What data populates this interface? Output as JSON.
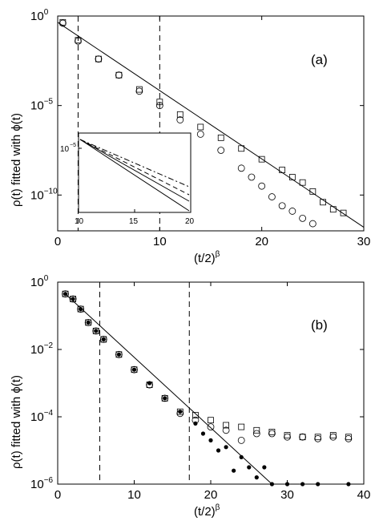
{
  "chart_data": [
    {
      "panel": "(a)",
      "type": "scatter",
      "panel_label": "(a)",
      "xlabel": "(t/2)",
      "xlabel_exp": "β",
      "ylabel": "ρ(t) fitted with ϕ(t)",
      "xlim": [
        0,
        30
      ],
      "ylim_log10": [
        -12,
        0
      ],
      "y_scale": "log",
      "x_ticks": [
        0,
        10,
        20,
        30
      ],
      "y_ticks": [
        {
          "base": "10",
          "exp": "0",
          "log": 0
        },
        {
          "base": "10",
          "exp": "−5",
          "log": -5
        },
        {
          "base": "10",
          "exp": "−10",
          "log": -10
        }
      ],
      "vlines": [
        2,
        10
      ],
      "fit_line": {
        "x": [
          0,
          30
        ],
        "log10_y": [
          -0.35,
          -11.8
        ]
      },
      "series": [
        {
          "marker": "square",
          "x": [
            0.5,
            2,
            4,
            6,
            8,
            10,
            12,
            14,
            16,
            18,
            20,
            22,
            23,
            24,
            25,
            26,
            27,
            28
          ],
          "log10_y": [
            -0.35,
            -1.35,
            -2.4,
            -3.3,
            -4.1,
            -4.8,
            -5.5,
            -6.2,
            -6.8,
            -7.4,
            -8.0,
            -8.6,
            -9.0,
            -9.3,
            -9.8,
            -10.4,
            -10.8,
            -11.0
          ]
        },
        {
          "marker": "circle",
          "x": [
            0.5,
            2,
            4,
            6,
            8,
            10,
            12,
            14,
            16,
            18,
            19,
            20,
            21,
            22,
            23,
            24,
            25
          ],
          "log10_y": [
            -0.4,
            -1.4,
            -2.4,
            -3.3,
            -4.2,
            -5.0,
            -5.8,
            -6.6,
            -7.5,
            -8.5,
            -9.0,
            -9.5,
            -10.1,
            -10.6,
            -10.9,
            -11.3,
            -11.6
          ]
        }
      ],
      "inset": {
        "xlim": [
          10,
          20
        ],
        "x_ticks": [
          10,
          15,
          20
        ],
        "y_tick": {
          "base": "10",
          "exp": "−5"
        },
        "lines": [
          "solid",
          "solid",
          "dashed",
          "dashdot"
        ]
      }
    },
    {
      "panel": "(b)",
      "type": "scatter",
      "panel_label": "(b)",
      "xlabel": "(t/2)",
      "xlabel_exp": "β",
      "ylabel": "ρ(t) fitted with ϕ(t)",
      "xlim": [
        0,
        40
      ],
      "ylim_log10": [
        -6,
        0
      ],
      "y_scale": "log",
      "x_ticks": [
        0,
        10,
        20,
        30,
        40
      ],
      "y_ticks": [
        {
          "base": "10",
          "exp": "0",
          "log": 0
        },
        {
          "base": "10",
          "exp": "−2",
          "log": -2
        },
        {
          "base": "10",
          "exp": "−4",
          "log": -4
        },
        {
          "base": "10",
          "exp": "−6",
          "log": -6
        }
      ],
      "vlines": [
        5.5,
        17.2
      ],
      "fit_line": {
        "x": [
          1,
          28
        ],
        "log10_y": [
          -0.35,
          -6.0
        ]
      },
      "series": [
        {
          "marker": "filled-circle",
          "x": [
            1,
            2,
            3,
            4,
            5,
            6,
            8,
            10,
            12,
            14,
            16,
            18,
            19,
            20,
            21,
            22,
            23,
            24,
            25,
            26,
            27,
            28,
            30,
            32,
            34,
            38
          ],
          "log10_y": [
            -0.35,
            -0.5,
            -0.8,
            -1.2,
            -1.45,
            -1.7,
            -2.15,
            -2.6,
            -3.0,
            -3.45,
            -3.85,
            -4.2,
            -4.5,
            -4.7,
            -5.0,
            -4.9,
            -5.6,
            -5.2,
            -5.5,
            -5.8,
            -5.5,
            -6.0,
            -6.0,
            -6.0,
            -6.0,
            -6.0
          ]
        },
        {
          "marker": "circle",
          "x": [
            1,
            2,
            3,
            4,
            5,
            6,
            8,
            10,
            12,
            14,
            16,
            18,
            20,
            22,
            24,
            26,
            28,
            30,
            32,
            34,
            36,
            38
          ],
          "log10_y": [
            -0.35,
            -0.5,
            -0.8,
            -1.2,
            -1.45,
            -1.7,
            -2.15,
            -2.6,
            -3.05,
            -3.45,
            -3.9,
            -4.1,
            -4.3,
            -4.4,
            -4.7,
            -4.5,
            -4.5,
            -4.6,
            -4.6,
            -4.65,
            -4.6,
            -4.65
          ]
        },
        {
          "marker": "square",
          "x": [
            1,
            2,
            3,
            4,
            5,
            6,
            8,
            10,
            12,
            14,
            16,
            18,
            20,
            22,
            24,
            26,
            28,
            30,
            32,
            34,
            36,
            38
          ],
          "log10_y": [
            -0.35,
            -0.5,
            -0.8,
            -1.2,
            -1.45,
            -1.7,
            -2.15,
            -2.6,
            -3.05,
            -3.45,
            -3.85,
            -3.95,
            -4.1,
            -4.25,
            -4.3,
            -4.4,
            -4.45,
            -4.55,
            -4.6,
            -4.6,
            -4.55,
            -4.6
          ]
        }
      ]
    }
  ]
}
